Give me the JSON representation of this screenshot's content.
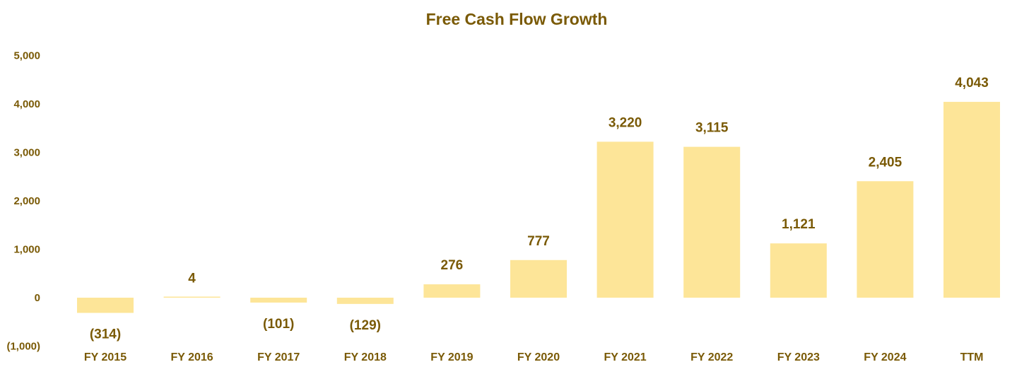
{
  "chart_data": {
    "type": "bar",
    "title": "Free Cash Flow Growth",
    "xlabel": "",
    "ylabel": "",
    "ylim": [
      -1000,
      5000
    ],
    "yticks": [
      5000,
      4000,
      3000,
      2000,
      1000,
      0,
      -1000
    ],
    "ytick_labels": [
      "5,000",
      "4,000",
      "3,000",
      "2,000",
      "1,000",
      "0",
      "(1,000)"
    ],
    "grid": false,
    "categories": [
      "FY 2015",
      "FY 2016",
      "FY 2017",
      "FY 2018",
      "FY 2019",
      "FY 2020",
      "FY 2021",
      "FY 2022",
      "FY 2023",
      "FY 2024",
      "TTM"
    ],
    "values": [
      -314,
      4,
      -101,
      -129,
      276,
      777,
      3220,
      3115,
      1121,
      2405,
      4043
    ],
    "data_labels": [
      "(314)",
      "4",
      "(101)",
      "(129)",
      "276",
      "777",
      "3,220",
      "3,115",
      "1,121",
      "2,405",
      "4,043"
    ],
    "bar_color": "#fde598",
    "text_color": "#7a5a06"
  }
}
